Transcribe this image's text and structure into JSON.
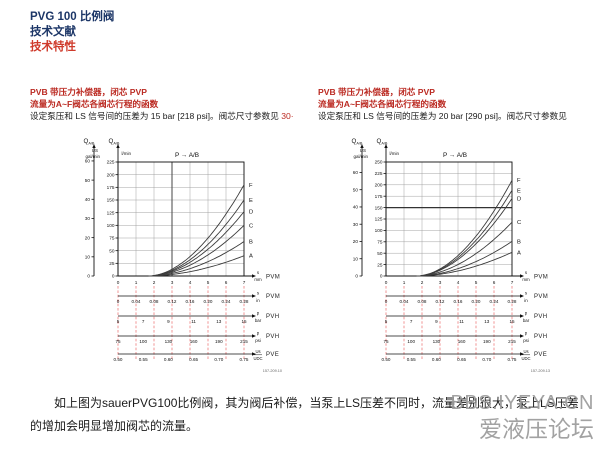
{
  "header": {
    "line1": "PVG 100 比例阀",
    "line2": "技术文献",
    "line3": "技术特性"
  },
  "columns": [
    {
      "red_line1": "PVB 带压力补偿器，闭芯 PVP",
      "red_line2": "流量为A~F阀芯各阀芯行程的函数",
      "body": "设定泵压和 LS 信号间的压差为 15 bar [218 psi]。阀芯尺寸参数见",
      "body_ref": "30·"
    },
    {
      "red_line1": "PVB 带压力补偿器，闭芯 PVP",
      "red_line2": "流量为A~F阀芯各阀芯行程的函数",
      "body": "设定泵压和 LS 信号间的压差为 20 bar [290 psi]。阀芯尺寸参数见",
      "body_ref": ""
    }
  ],
  "footer": {
    "paragraph": "如上图为sauerPVG100比例阀，其为阀后补偿，当泵上LS压差不同时，流量差别很大，泵上LS压差的增加会明显增加阀芯的流量。"
  },
  "watermark": {
    "line1": "BBS.IYEYA.CN",
    "line2": "爱液压论坛"
  },
  "colors": {
    "navy": "#1c3667",
    "red": "#bb2a22",
    "grid": "#9a9a9a",
    "axis": "#111111",
    "curve": "#3c3c3c",
    "red_tick": "#ef8a8a",
    "watermark": "#9b9b9b"
  },
  "chart_data": [
    {
      "type": "line",
      "title": "P → A/B",
      "flow_label": {
        "symbol": "Q",
        "subscript": "A/B"
      },
      "y_axis_gal": {
        "unit_line1": "US",
        "unit_line2": "gal/min",
        "ticks": [
          0,
          10,
          20,
          30,
          40,
          50,
          60
        ],
        "lmin_per_unit": 3.785
      },
      "y_axis_lmin": {
        "unit": "l/min",
        "min": 0,
        "max": 225,
        "step": 25
      },
      "x_axis": {
        "max_mm": 7,
        "ticks": [
          0,
          1,
          2,
          3,
          4,
          5,
          6,
          7
        ],
        "symbol": "s",
        "unit": "mm",
        "module": "PVM"
      },
      "scale_rows": [
        {
          "values": [
            "0",
            "0.04",
            "0.08",
            "0.12",
            "0.16",
            "0.20",
            "0.24",
            "0.28"
          ],
          "align": "mm",
          "symbol": "s",
          "unit": "in",
          "module": "PVM",
          "fraction": false
        },
        {
          "values": [
            "5",
            "7",
            "9",
            "11",
            "13",
            "15"
          ],
          "align": "even",
          "symbol": "p",
          "unit": "bar",
          "module": "PVH",
          "fraction": false
        },
        {
          "values": [
            "75",
            "100",
            "130",
            "160",
            "190",
            "215"
          ],
          "align": "even",
          "symbol": "p",
          "unit": "psi",
          "module": "PVH",
          "fraction": false
        },
        {
          "values": [
            "0.50",
            "0.55",
            "0.60",
            "0.65",
            "0.70",
            "0.75"
          ],
          "align": "even",
          "symbol": "Us",
          "unit": "UDC",
          "module": "PVE",
          "fraction": true
        }
      ],
      "curves": {
        "deadband_mm": 1.7,
        "exponent": 1.85,
        "series": [
          {
            "name": "A",
            "end_lmin": 40
          },
          {
            "name": "B",
            "end_lmin": 68
          },
          {
            "name": "C",
            "end_lmin": 100
          },
          {
            "name": "D",
            "end_lmin": 127
          },
          {
            "name": "E",
            "end_lmin": 150
          },
          {
            "name": "F",
            "end_lmin": 180
          }
        ]
      },
      "bold_gridline": {
        "axis": "x",
        "value": 3
      },
      "figure_ref": "157-209.10"
    },
    {
      "type": "line",
      "title": "P → A/B",
      "flow_label": {
        "symbol": "Q",
        "subscript": "A/B"
      },
      "y_axis_gal": {
        "unit_line1": "US",
        "unit_line2": "gal/min",
        "ticks": [
          0,
          10,
          20,
          30,
          40,
          50,
          60
        ],
        "lmin_per_unit": 3.785
      },
      "y_axis_lmin": {
        "unit": "l/min",
        "min": 0,
        "max": 250,
        "step": 25
      },
      "x_axis": {
        "max_mm": 7,
        "ticks": [
          0,
          1,
          2,
          3,
          4,
          5,
          6,
          7
        ],
        "symbol": "s",
        "unit": "mm",
        "module": "PVM"
      },
      "scale_rows": [
        {
          "values": [
            "0",
            "0.04",
            "0.08",
            "0.12",
            "0.16",
            "0.20",
            "0.24",
            "0.28"
          ],
          "align": "mm",
          "symbol": "s",
          "unit": "in",
          "module": "PVM",
          "fraction": false
        },
        {
          "values": [
            "5",
            "7",
            "9",
            "11",
            "13",
            "15"
          ],
          "align": "even",
          "symbol": "p",
          "unit": "bar",
          "module": "PVH",
          "fraction": false
        },
        {
          "values": [
            "75",
            "100",
            "130",
            "160",
            "190",
            "215"
          ],
          "align": "even",
          "symbol": "p",
          "unit": "psi",
          "module": "PVH",
          "fraction": false
        },
        {
          "values": [
            "0.50",
            "0.55",
            "0.60",
            "0.65",
            "0.70",
            "0.75"
          ],
          "align": "even",
          "symbol": "Us",
          "unit": "UDC",
          "module": "PVE",
          "fraction": true
        }
      ],
      "curves": {
        "deadband_mm": 1.7,
        "exponent": 1.85,
        "series": [
          {
            "name": "A",
            "end_lmin": 52
          },
          {
            "name": "B",
            "end_lmin": 76
          },
          {
            "name": "C",
            "end_lmin": 118
          },
          {
            "name": "D",
            "end_lmin": 170
          },
          {
            "name": "E",
            "end_lmin": 188
          },
          {
            "name": "F",
            "end_lmin": 210
          }
        ]
      },
      "bold_gridline": {
        "axis": "y",
        "value": 150
      },
      "figure_ref": "157-209.13"
    }
  ]
}
